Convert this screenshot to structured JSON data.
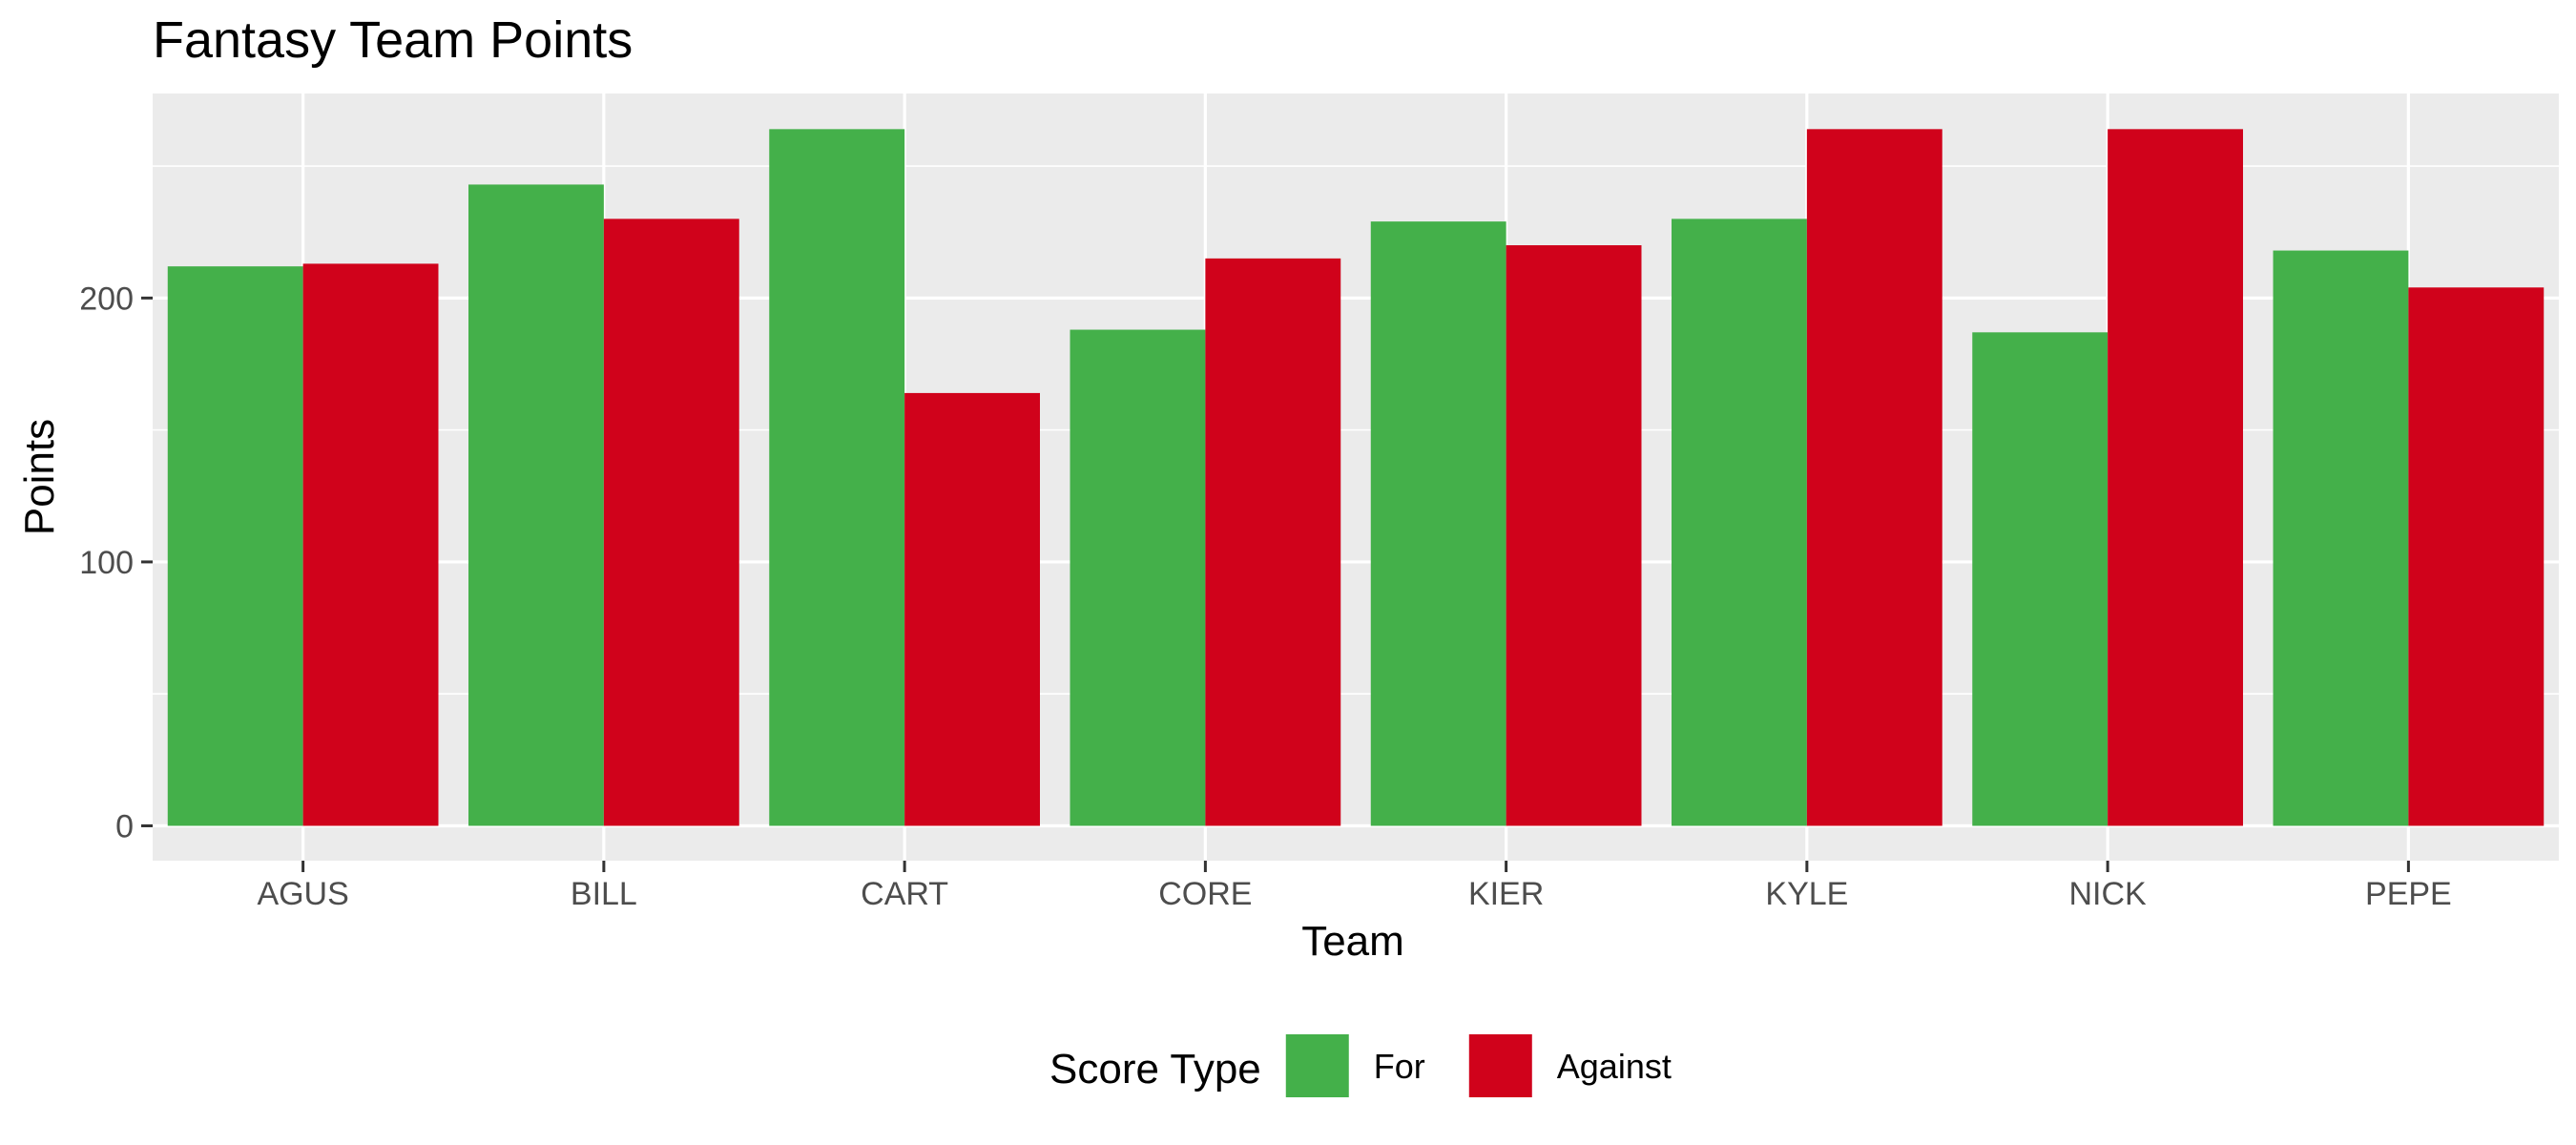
{
  "chart_data": {
    "type": "bar",
    "title": "Fantasy Team Points",
    "xlabel": "Team",
    "ylabel": "Points",
    "categories": [
      "AGUS",
      "BILL",
      "CART",
      "CORE",
      "KIER",
      "KYLE",
      "NICK",
      "PEPE"
    ],
    "series": [
      {
        "name": "For",
        "color": "#44b04a",
        "values": [
          212,
          243,
          264,
          188,
          229,
          230,
          187,
          218
        ]
      },
      {
        "name": "Against",
        "color": "#d0021b",
        "values": [
          213,
          230,
          164,
          215,
          220,
          264,
          264,
          204
        ]
      }
    ],
    "yticks": [
      0,
      100,
      200
    ],
    "ylim": [
      -13.2,
      277.5
    ],
    "grid": true,
    "panel_background": "#ebebeb",
    "legend": {
      "title": "Score Type",
      "position": "bottom"
    }
  }
}
